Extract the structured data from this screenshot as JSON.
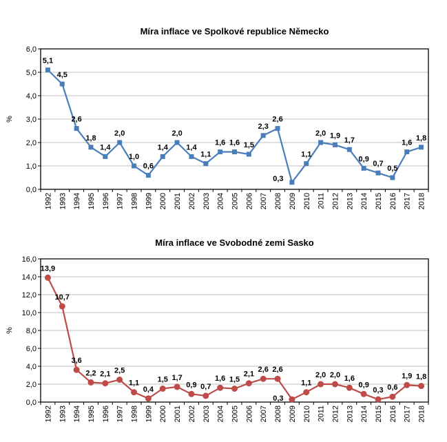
{
  "chart_data": [
    {
      "type": "line",
      "title": "Míra inflace ve Spolkové republice Německo",
      "xlabel": "",
      "ylabel": "%",
      "ylim": [
        0,
        6
      ],
      "ystep": 1,
      "ytick_labels": [
        "0,0",
        "1,0",
        "2,0",
        "3,0",
        "4,0",
        "5,0",
        "6,0"
      ],
      "grid": true,
      "color": "#4a7ebb",
      "marker": "square",
      "categories": [
        "1992",
        "1993",
        "1994",
        "1995",
        "1996",
        "1997",
        "1998",
        "1999",
        "2000",
        "2001",
        "2002",
        "2003",
        "2004",
        "2005",
        "2006",
        "2007",
        "2008",
        "2009",
        "2010",
        "2011",
        "2012",
        "2013",
        "2014",
        "2015",
        "2016",
        "2017",
        "2018"
      ],
      "values": [
        5.1,
        4.5,
        2.6,
        1.8,
        1.4,
        2.0,
        1.0,
        0.6,
        1.4,
        2.0,
        1.4,
        1.1,
        1.6,
        1.6,
        1.5,
        2.3,
        2.6,
        0.3,
        1.1,
        2.0,
        1.9,
        1.7,
        0.9,
        0.7,
        0.5,
        1.6,
        1.8
      ],
      "labels": [
        "5,1",
        "4,5",
        "2,6",
        "1,8",
        "1,4",
        "2,0",
        "1,0",
        "0,6",
        "1,4",
        "2,0",
        "1,4",
        "1,1",
        "1,6",
        "1,6",
        "1,5",
        "2,3",
        "2,6",
        "0,3",
        "1,1",
        "2,0",
        "1,9",
        "1,7",
        "0,9",
        "0,7",
        "0,5",
        "1,6",
        "1,8"
      ]
    },
    {
      "type": "line",
      "title": "Míra inflace ve Svobodné zemi Sasko",
      "xlabel": "",
      "ylabel": "%",
      "ylim": [
        0,
        16
      ],
      "ystep": 2,
      "ytick_labels": [
        "0,0",
        "2,0",
        "4,0",
        "6,0",
        "8,0",
        "10,0",
        "12,0",
        "14,0",
        "16,0"
      ],
      "grid": true,
      "color": "#be4b48",
      "marker": "circle",
      "categories": [
        "1992",
        "1993",
        "1994",
        "1995",
        "1996",
        "1997",
        "1998",
        "1999",
        "2000",
        "2001",
        "2002",
        "2003",
        "2004",
        "2005",
        "2006",
        "2007",
        "2008",
        "2009",
        "2010",
        "2011",
        "2012",
        "2013",
        "2014",
        "2015",
        "2016",
        "2017",
        "2018"
      ],
      "values": [
        13.9,
        10.7,
        3.6,
        2.2,
        2.1,
        2.5,
        1.1,
        0.4,
        1.5,
        1.7,
        0.9,
        0.7,
        1.6,
        1.5,
        2.1,
        2.6,
        2.6,
        0.3,
        1.1,
        2.0,
        2.0,
        1.6,
        0.9,
        0.3,
        0.6,
        1.9,
        1.8
      ],
      "labels": [
        "13,9",
        "10,7",
        "3,6",
        "2,2",
        "2,1",
        "2,5",
        "1,1",
        "0,4",
        "1,5",
        "1,7",
        "0,9",
        "0,7",
        "1,6",
        "1,5",
        "2,1",
        "2,6",
        "2,6",
        "0,3",
        "1,1",
        "2,0",
        "2,0",
        "1,6",
        "0,9",
        "0,3",
        "0,6",
        "1,9",
        "1,8"
      ]
    }
  ]
}
